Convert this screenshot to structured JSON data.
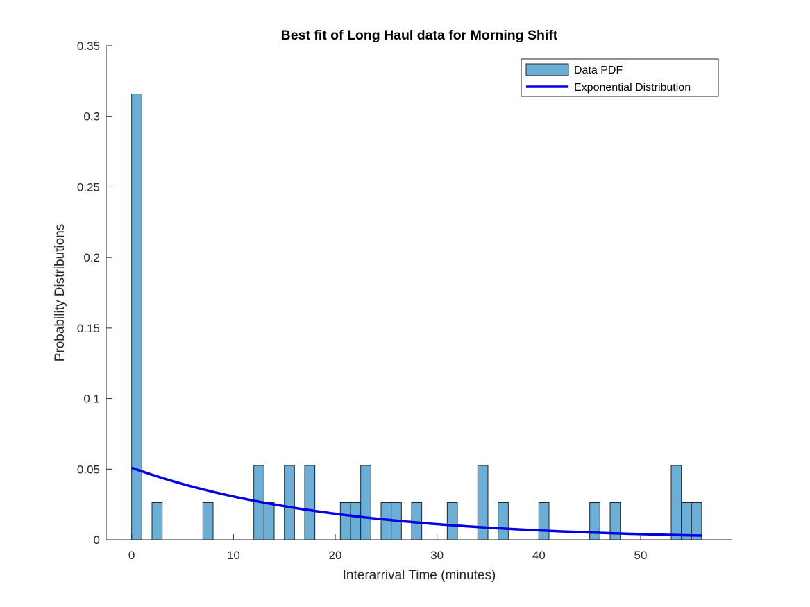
{
  "chart_data": {
    "type": "bar",
    "title": "Best fit of Long Haul data for Morning Shift",
    "xlabel": "Interarrival Time (minutes)",
    "ylabel": "Probability Distributions",
    "xlim": [
      -2.5,
      59
    ],
    "ylim": [
      0,
      0.35
    ],
    "xticks": [
      0,
      10,
      20,
      30,
      40,
      50
    ],
    "yticks": [
      0,
      0.05,
      0.1,
      0.15,
      0.2,
      0.25,
      0.3,
      0.35
    ],
    "grid": false,
    "legend_position": "top-right",
    "bin_width": 1,
    "bar_color": "#6baed6",
    "line_color": "#0000e6",
    "series": [
      {
        "name": "Data PDF",
        "type": "histogram",
        "bins": [
          {
            "left": 0,
            "value": 0.3158
          },
          {
            "left": 2,
            "value": 0.0263
          },
          {
            "left": 7,
            "value": 0.0263
          },
          {
            "left": 12,
            "value": 0.0526
          },
          {
            "left": 13,
            "value": 0.0263
          },
          {
            "left": 15,
            "value": 0.0526
          },
          {
            "left": 17,
            "value": 0.0526
          },
          {
            "left": 20.5,
            "value": 0.0263
          },
          {
            "left": 21.5,
            "value": 0.0263
          },
          {
            "left": 22.5,
            "value": 0.0526
          },
          {
            "left": 24.5,
            "value": 0.0263
          },
          {
            "left": 25.5,
            "value": 0.0263
          },
          {
            "left": 27.5,
            "value": 0.0263
          },
          {
            "left": 31,
            "value": 0.0263
          },
          {
            "left": 34,
            "value": 0.0526
          },
          {
            "left": 36,
            "value": 0.0263
          },
          {
            "left": 40,
            "value": 0.0263
          },
          {
            "left": 45,
            "value": 0.0263
          },
          {
            "left": 47,
            "value": 0.0263
          },
          {
            "left": 53,
            "value": 0.0526
          },
          {
            "left": 54,
            "value": 0.0263
          },
          {
            "left": 55,
            "value": 0.0263
          }
        ]
      },
      {
        "name": "Exponential Distribution",
        "type": "line",
        "distribution": "exponential",
        "rate": 0.051,
        "mean": 19.6,
        "x_range": [
          0,
          56
        ]
      }
    ]
  }
}
